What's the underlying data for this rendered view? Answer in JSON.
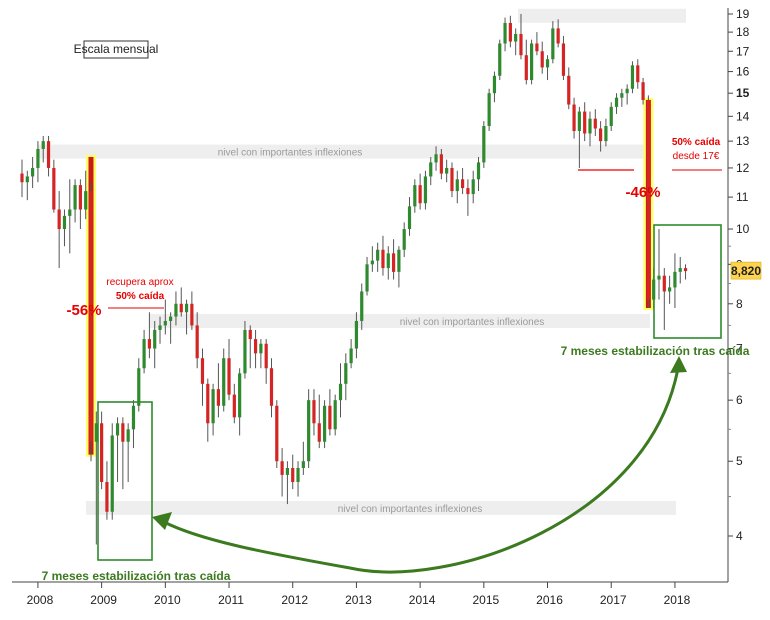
{
  "chart_data": {
    "type": "candlestick",
    "scale_label": "Escala mensual",
    "y_scale": "log",
    "ylim": [
      3.6,
      19.5
    ],
    "y_ticks": [
      4,
      5,
      6,
      7,
      8,
      9,
      10,
      11,
      12,
      13,
      14,
      15,
      16,
      17,
      18,
      19
    ],
    "x_ticks": [
      "2008",
      "2009",
      "2010",
      "2011",
      "2012",
      "2013",
      "2014",
      "2015",
      "2016",
      "2017",
      "2018"
    ],
    "last_price": "8,820",
    "colors": {
      "up": "#2f8a2f",
      "down": "#d42424",
      "band": "#eeeeee",
      "arrow": "#3b7a1e",
      "highlight": "#ffff66",
      "drop": "#cc1a1a"
    },
    "bands": [
      {
        "label": "nivel con importantes inflexiones",
        "price": 12.6
      },
      {
        "label": "nivel con importantes inflexiones",
        "price": 7.6
      },
      {
        "label": "nivel con importantes inflexiones",
        "price": 4.35
      },
      {
        "label": "",
        "price": 18.9
      }
    ],
    "annotations": {
      "drop_2008": "-56%",
      "drop_2017": "-46%",
      "recovery_line1": "recupera aprox",
      "recovery_line2": "50% caída",
      "fall_line1": "50% caída",
      "fall_line2": "desde 17€",
      "stabilization_left": "7 meses estabilización tras caída",
      "stabilization_right": "7 meses estabilización tras caída"
    },
    "candles": [
      {
        "date": "2007-10",
        "open": 11.8,
        "high": 12.3,
        "low": 11.0,
        "close": 11.5
      },
      {
        "date": "2007-11",
        "open": 11.5,
        "high": 11.9,
        "low": 10.9,
        "close": 11.7
      },
      {
        "date": "2007-12",
        "open": 11.7,
        "high": 12.4,
        "low": 11.3,
        "close": 12.0
      },
      {
        "date": "2008-01",
        "open": 12.0,
        "high": 13.0,
        "low": 11.5,
        "close": 12.7
      },
      {
        "date": "2008-02",
        "open": 12.7,
        "high": 13.2,
        "low": 12.2,
        "close": 13.0
      },
      {
        "date": "2008-03",
        "open": 13.0,
        "high": 13.2,
        "low": 11.7,
        "close": 12.0
      },
      {
        "date": "2008-04",
        "open": 12.0,
        "high": 12.3,
        "low": 10.5,
        "close": 10.6
      },
      {
        "date": "2008-05",
        "open": 10.6,
        "high": 11.2,
        "low": 8.9,
        "close": 10.0
      },
      {
        "date": "2008-06",
        "open": 10.0,
        "high": 10.6,
        "low": 9.5,
        "close": 10.4
      },
      {
        "date": "2008-07",
        "open": 10.4,
        "high": 11.6,
        "low": 9.3,
        "close": 10.6
      },
      {
        "date": "2008-08",
        "open": 10.6,
        "high": 11.6,
        "low": 10.2,
        "close": 11.4
      },
      {
        "date": "2008-09",
        "open": 11.4,
        "high": 11.6,
        "low": 10.0,
        "close": 10.6
      },
      {
        "date": "2008-10",
        "open": 10.6,
        "high": 11.9,
        "low": 10.3,
        "close": 11.2
      },
      {
        "date": "2008-11",
        "open": 11.2,
        "high": 11.5,
        "low": 5.0,
        "close": 5.3
      },
      {
        "date": "2008-12",
        "open": 5.3,
        "high": 5.8,
        "low": 3.9,
        "close": 5.6
      },
      {
        "date": "2009-01",
        "open": 5.6,
        "high": 5.8,
        "low": 4.6,
        "close": 4.7
      },
      {
        "date": "2009-02",
        "open": 4.7,
        "high": 5.0,
        "low": 4.2,
        "close": 4.3
      },
      {
        "date": "2009-03",
        "open": 4.3,
        "high": 5.6,
        "low": 4.2,
        "close": 5.4
      },
      {
        "date": "2009-04",
        "open": 5.4,
        "high": 5.7,
        "low": 4.7,
        "close": 5.6
      },
      {
        "date": "2009-05",
        "open": 5.6,
        "high": 5.7,
        "low": 4.6,
        "close": 5.3
      },
      {
        "date": "2009-06",
        "open": 5.3,
        "high": 5.6,
        "low": 4.7,
        "close": 5.5
      },
      {
        "date": "2009-07",
        "open": 5.5,
        "high": 6.0,
        "low": 5.2,
        "close": 5.9
      },
      {
        "date": "2009-08",
        "open": 5.9,
        "high": 6.8,
        "low": 5.8,
        "close": 6.6
      },
      {
        "date": "2009-09",
        "open": 6.6,
        "high": 7.4,
        "low": 6.5,
        "close": 7.2
      },
      {
        "date": "2009-10",
        "open": 7.2,
        "high": 7.8,
        "low": 6.8,
        "close": 7.0
      },
      {
        "date": "2009-11",
        "open": 7.0,
        "high": 7.6,
        "low": 6.6,
        "close": 7.4
      },
      {
        "date": "2009-12",
        "open": 7.4,
        "high": 7.7,
        "low": 7.1,
        "close": 7.5
      },
      {
        "date": "2010-01",
        "open": 7.5,
        "high": 8.1,
        "low": 7.3,
        "close": 7.6
      },
      {
        "date": "2010-02",
        "open": 7.6,
        "high": 7.8,
        "low": 7.1,
        "close": 7.7
      },
      {
        "date": "2010-03",
        "open": 7.7,
        "high": 8.3,
        "low": 7.5,
        "close": 8.0
      },
      {
        "date": "2010-04",
        "open": 8.0,
        "high": 8.4,
        "low": 7.7,
        "close": 7.8
      },
      {
        "date": "2010-05",
        "open": 7.8,
        "high": 8.1,
        "low": 7.3,
        "close": 8.0
      },
      {
        "date": "2010-06",
        "open": 8.0,
        "high": 8.3,
        "low": 7.4,
        "close": 7.5
      },
      {
        "date": "2010-07",
        "open": 7.5,
        "high": 7.8,
        "low": 6.6,
        "close": 6.8
      },
      {
        "date": "2010-08",
        "open": 6.8,
        "high": 7.0,
        "low": 5.9,
        "close": 6.3
      },
      {
        "date": "2010-09",
        "open": 6.3,
        "high": 6.4,
        "low": 5.3,
        "close": 5.6
      },
      {
        "date": "2010-10",
        "open": 5.6,
        "high": 6.3,
        "low": 5.4,
        "close": 6.2
      },
      {
        "date": "2010-11",
        "open": 6.2,
        "high": 6.7,
        "low": 5.7,
        "close": 5.9
      },
      {
        "date": "2010-12",
        "open": 5.9,
        "high": 7.0,
        "low": 5.8,
        "close": 6.8
      },
      {
        "date": "2011-01",
        "open": 6.8,
        "high": 7.2,
        "low": 6.0,
        "close": 6.1
      },
      {
        "date": "2011-02",
        "open": 6.1,
        "high": 6.3,
        "low": 5.6,
        "close": 5.7
      },
      {
        "date": "2011-03",
        "open": 5.7,
        "high": 6.6,
        "low": 5.4,
        "close": 6.5
      },
      {
        "date": "2011-04",
        "open": 6.5,
        "high": 7.6,
        "low": 6.4,
        "close": 7.4
      },
      {
        "date": "2011-05",
        "open": 7.4,
        "high": 7.5,
        "low": 6.6,
        "close": 7.2
      },
      {
        "date": "2011-06",
        "open": 7.2,
        "high": 7.4,
        "low": 6.6,
        "close": 6.9
      },
      {
        "date": "2011-07",
        "open": 6.9,
        "high": 7.2,
        "low": 6.6,
        "close": 7.1
      },
      {
        "date": "2011-08",
        "open": 7.1,
        "high": 7.2,
        "low": 6.3,
        "close": 6.6
      },
      {
        "date": "2011-09",
        "open": 6.6,
        "high": 6.8,
        "low": 5.7,
        "close": 5.9
      },
      {
        "date": "2011-10",
        "open": 5.9,
        "high": 6.0,
        "low": 4.9,
        "close": 5.0
      },
      {
        "date": "2011-11",
        "open": 5.0,
        "high": 5.2,
        "low": 4.5,
        "close": 4.8
      },
      {
        "date": "2011-12",
        "open": 4.8,
        "high": 5.0,
        "low": 4.4,
        "close": 4.9
      },
      {
        "date": "2012-01",
        "open": 4.9,
        "high": 5.1,
        "low": 4.6,
        "close": 4.7
      },
      {
        "date": "2012-02",
        "open": 4.7,
        "high": 5.0,
        "low": 4.5,
        "close": 4.9
      },
      {
        "date": "2012-03",
        "open": 4.9,
        "high": 5.3,
        "low": 4.8,
        "close": 5.0
      },
      {
        "date": "2012-04",
        "open": 5.0,
        "high": 6.2,
        "low": 4.9,
        "close": 6.0
      },
      {
        "date": "2012-05",
        "open": 6.0,
        "high": 6.2,
        "low": 5.4,
        "close": 5.6
      },
      {
        "date": "2012-06",
        "open": 5.6,
        "high": 6.1,
        "low": 5.2,
        "close": 5.3
      },
      {
        "date": "2012-07",
        "open": 5.3,
        "high": 6.0,
        "low": 5.2,
        "close": 5.9
      },
      {
        "date": "2012-08",
        "open": 5.9,
        "high": 6.2,
        "low": 5.4,
        "close": 5.5
      },
      {
        "date": "2012-09",
        "open": 5.5,
        "high": 6.1,
        "low": 5.4,
        "close": 6.0
      },
      {
        "date": "2012-10",
        "open": 6.0,
        "high": 6.7,
        "low": 5.7,
        "close": 6.3
      },
      {
        "date": "2012-11",
        "open": 6.3,
        "high": 6.9,
        "low": 6.0,
        "close": 6.7
      },
      {
        "date": "2012-12",
        "open": 6.7,
        "high": 7.2,
        "low": 6.6,
        "close": 7.0
      },
      {
        "date": "2013-01",
        "open": 7.0,
        "high": 7.8,
        "low": 6.8,
        "close": 7.6
      },
      {
        "date": "2013-02",
        "open": 7.6,
        "high": 8.5,
        "low": 7.4,
        "close": 8.3
      },
      {
        "date": "2013-03",
        "open": 8.3,
        "high": 9.2,
        "low": 8.2,
        "close": 9.0
      },
      {
        "date": "2013-04",
        "open": 9.0,
        "high": 9.5,
        "low": 8.8,
        "close": 9.1
      },
      {
        "date": "2013-05",
        "open": 9.1,
        "high": 9.6,
        "low": 8.8,
        "close": 9.4
      },
      {
        "date": "2013-06",
        "open": 9.4,
        "high": 9.8,
        "low": 8.7,
        "close": 8.9
      },
      {
        "date": "2013-07",
        "open": 8.9,
        "high": 9.5,
        "low": 8.6,
        "close": 9.3
      },
      {
        "date": "2013-08",
        "open": 9.3,
        "high": 9.7,
        "low": 8.6,
        "close": 8.8
      },
      {
        "date": "2013-09",
        "open": 8.8,
        "high": 9.5,
        "low": 8.4,
        "close": 9.4
      },
      {
        "date": "2013-10",
        "open": 9.4,
        "high": 10.2,
        "low": 9.2,
        "close": 10.0
      },
      {
        "date": "2013-11",
        "open": 10.0,
        "high": 11.0,
        "low": 9.8,
        "close": 10.7
      },
      {
        "date": "2013-12",
        "open": 10.7,
        "high": 11.6,
        "low": 10.5,
        "close": 11.4
      },
      {
        "date": "2014-01",
        "open": 11.4,
        "high": 11.8,
        "low": 10.6,
        "close": 10.8
      },
      {
        "date": "2014-02",
        "open": 10.8,
        "high": 11.9,
        "low": 10.6,
        "close": 11.7
      },
      {
        "date": "2014-03",
        "open": 11.7,
        "high": 12.4,
        "low": 11.4,
        "close": 12.2
      },
      {
        "date": "2014-04",
        "open": 12.2,
        "high": 12.8,
        "low": 11.9,
        "close": 12.5
      },
      {
        "date": "2014-05",
        "open": 12.5,
        "high": 12.7,
        "low": 11.6,
        "close": 11.8
      },
      {
        "date": "2014-06",
        "open": 11.8,
        "high": 12.3,
        "low": 11.5,
        "close": 12.0
      },
      {
        "date": "2014-07",
        "open": 12.0,
        "high": 12.2,
        "low": 11.0,
        "close": 11.2
      },
      {
        "date": "2014-08",
        "open": 11.2,
        "high": 11.9,
        "low": 10.8,
        "close": 11.6
      },
      {
        "date": "2014-09",
        "open": 11.6,
        "high": 12.0,
        "low": 11.1,
        "close": 11.3
      },
      {
        "date": "2014-10",
        "open": 11.3,
        "high": 11.6,
        "low": 10.4,
        "close": 11.1
      },
      {
        "date": "2014-11",
        "open": 11.1,
        "high": 11.9,
        "low": 10.8,
        "close": 11.6
      },
      {
        "date": "2014-12",
        "open": 11.6,
        "high": 12.4,
        "low": 11.2,
        "close": 12.2
      },
      {
        "date": "2015-01",
        "open": 12.2,
        "high": 13.8,
        "low": 12.0,
        "close": 13.6
      },
      {
        "date": "2015-02",
        "open": 13.6,
        "high": 15.2,
        "low": 13.4,
        "close": 15.0
      },
      {
        "date": "2015-03",
        "open": 15.0,
        "high": 16.0,
        "low": 14.6,
        "close": 15.8
      },
      {
        "date": "2015-04",
        "open": 15.8,
        "high": 17.6,
        "low": 15.6,
        "close": 17.4
      },
      {
        "date": "2015-05",
        "open": 17.4,
        "high": 18.8,
        "low": 17.0,
        "close": 18.5
      },
      {
        "date": "2015-06",
        "open": 18.5,
        "high": 18.9,
        "low": 17.2,
        "close": 17.5
      },
      {
        "date": "2015-07",
        "open": 17.5,
        "high": 18.2,
        "low": 16.8,
        "close": 17.9
      },
      {
        "date": "2015-08",
        "open": 17.9,
        "high": 19.0,
        "low": 16.6,
        "close": 16.8
      },
      {
        "date": "2015-09",
        "open": 16.8,
        "high": 17.6,
        "low": 15.4,
        "close": 15.6
      },
      {
        "date": "2015-10",
        "open": 15.6,
        "high": 17.6,
        "low": 15.4,
        "close": 17.4
      },
      {
        "date": "2015-11",
        "open": 17.4,
        "high": 18.0,
        "low": 16.8,
        "close": 17.0
      },
      {
        "date": "2015-12",
        "open": 17.0,
        "high": 17.5,
        "low": 15.9,
        "close": 16.2
      },
      {
        "date": "2016-01",
        "open": 16.2,
        "high": 16.8,
        "low": 15.6,
        "close": 16.6
      },
      {
        "date": "2016-02",
        "open": 16.6,
        "high": 18.6,
        "low": 16.4,
        "close": 18.2
      },
      {
        "date": "2016-03",
        "open": 18.2,
        "high": 18.7,
        "low": 17.2,
        "close": 17.4
      },
      {
        "date": "2016-04",
        "open": 17.4,
        "high": 17.8,
        "low": 15.6,
        "close": 15.8
      },
      {
        "date": "2016-05",
        "open": 15.8,
        "high": 16.2,
        "low": 14.3,
        "close": 14.5
      },
      {
        "date": "2016-06",
        "open": 14.5,
        "high": 14.8,
        "low": 13.1,
        "close": 13.4
      },
      {
        "date": "2016-07",
        "open": 13.4,
        "high": 14.4,
        "low": 12.0,
        "close": 14.2
      },
      {
        "date": "2016-08",
        "open": 14.2,
        "high": 14.6,
        "low": 13.0,
        "close": 13.3
      },
      {
        "date": "2016-09",
        "open": 13.3,
        "high": 14.2,
        "low": 12.8,
        "close": 13.9
      },
      {
        "date": "2016-10",
        "open": 13.9,
        "high": 14.3,
        "low": 13.2,
        "close": 13.5
      },
      {
        "date": "2016-11",
        "open": 13.5,
        "high": 13.8,
        "low": 12.6,
        "close": 13.0
      },
      {
        "date": "2016-12",
        "open": 13.0,
        "high": 13.9,
        "low": 12.8,
        "close": 13.6
      },
      {
        "date": "2017-01",
        "open": 13.6,
        "high": 14.6,
        "low": 13.4,
        "close": 14.4
      },
      {
        "date": "2017-02",
        "open": 14.4,
        "high": 15.0,
        "low": 14.1,
        "close": 14.8
      },
      {
        "date": "2017-03",
        "open": 14.8,
        "high": 15.2,
        "low": 14.4,
        "close": 15.0
      },
      {
        "date": "2017-04",
        "open": 15.0,
        "high": 15.4,
        "low": 14.5,
        "close": 15.2
      },
      {
        "date": "2017-05",
        "open": 15.2,
        "high": 16.5,
        "low": 15.0,
        "close": 16.3
      },
      {
        "date": "2017-06",
        "open": 16.3,
        "high": 16.6,
        "low": 15.2,
        "close": 15.5
      },
      {
        "date": "2017-07",
        "open": 15.5,
        "high": 15.7,
        "low": 14.5,
        "close": 14.7
      },
      {
        "date": "2017-08",
        "open": 14.7,
        "high": 14.9,
        "low": 7.9,
        "close": 8.1
      },
      {
        "date": "2017-09",
        "open": 8.1,
        "high": 8.9,
        "low": 7.9,
        "close": 8.6
      },
      {
        "date": "2017-10",
        "open": 8.6,
        "high": 10.0,
        "low": 8.1,
        "close": 8.7
      },
      {
        "date": "2017-11",
        "open": 8.7,
        "high": 8.9,
        "low": 7.4,
        "close": 8.3
      },
      {
        "date": "2017-12",
        "open": 8.3,
        "high": 8.7,
        "low": 8.0,
        "close": 8.4
      },
      {
        "date": "2018-01",
        "open": 8.4,
        "high": 9.3,
        "low": 7.9,
        "close": 8.8
      },
      {
        "date": "2018-02",
        "open": 8.8,
        "high": 9.2,
        "low": 8.5,
        "close": 8.9
      },
      {
        "date": "2018-03",
        "open": 8.9,
        "high": 9.0,
        "low": 8.6,
        "close": 8.82
      }
    ]
  }
}
